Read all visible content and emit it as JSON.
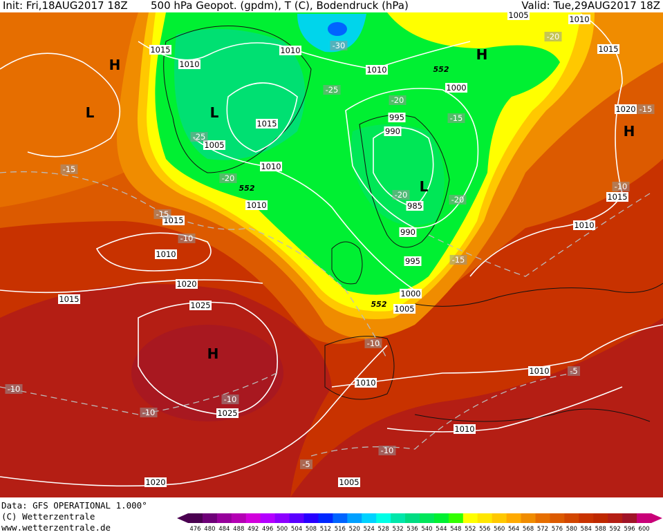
{
  "header": {
    "init": "Init: Fri,18AUG2017 18Z",
    "title": "500 hPa Geopot. (gpdm), T (C), Bodendruck (hPa)",
    "valid": "Valid: Tue,29AUG2017 18Z"
  },
  "footer": {
    "source": "Data: GFS OPERATIONAL 1.000°",
    "copyright": "(C) Wetterzentrale",
    "url": "www.wetterzentrale.de"
  },
  "colorbar": {
    "ticks": [
      "476",
      "480",
      "484",
      "488",
      "492",
      "496",
      "500",
      "504",
      "508",
      "512",
      "516",
      "520",
      "524",
      "528",
      "532",
      "536",
      "540",
      "544",
      "548",
      "552",
      "556",
      "560",
      "564",
      "568",
      "572",
      "576",
      "580",
      "584",
      "588",
      "592",
      "596",
      "600"
    ],
    "colors": [
      "#4a0050",
      "#6e0078",
      "#96009b",
      "#b400b4",
      "#d200dc",
      "#b400ff",
      "#8c00ff",
      "#5a00ff",
      "#2800ff",
      "#0028ff",
      "#0064ff",
      "#00a0ff",
      "#00d2ff",
      "#00ffe6",
      "#00e6aa",
      "#00dc82",
      "#00e65a",
      "#00f032",
      "#32ff00",
      "#ffff00",
      "#ffe600",
      "#ffc800",
      "#ffaa00",
      "#f08c00",
      "#e66e00",
      "#dc5a00",
      "#d24600",
      "#c83200",
      "#be2800",
      "#b41e14",
      "#a01428",
      "#c80078"
    ]
  },
  "pressure_labels": [
    "1015",
    "1010",
    "1010",
    "1010",
    "1005",
    "1010",
    "1015",
    "1000",
    "995",
    "990",
    "1015",
    "1005",
    "1010",
    "1010",
    "1020",
    "1015",
    "1010",
    "1015",
    "1020",
    "1025",
    "985",
    "990",
    "995",
    "1000",
    "1005",
    "1015",
    "1010",
    "1010",
    "1010",
    "1010",
    "1025",
    "1020",
    "1005"
  ],
  "temperature_labels": [
    "-30",
    "-25",
    "-20",
    "-15",
    "-25",
    "-20",
    "-15",
    "-15",
    "-10",
    "-20",
    "-20",
    "-15",
    "-10",
    "-15",
    "-20",
    "-10",
    "-10",
    "-10",
    "-10",
    "-5",
    "-10",
    "-5"
  ],
  "height_labels": [
    "552",
    "552",
    "552"
  ],
  "centers": [
    "H",
    "L",
    "L",
    "H",
    "H",
    "L",
    "H"
  ]
}
